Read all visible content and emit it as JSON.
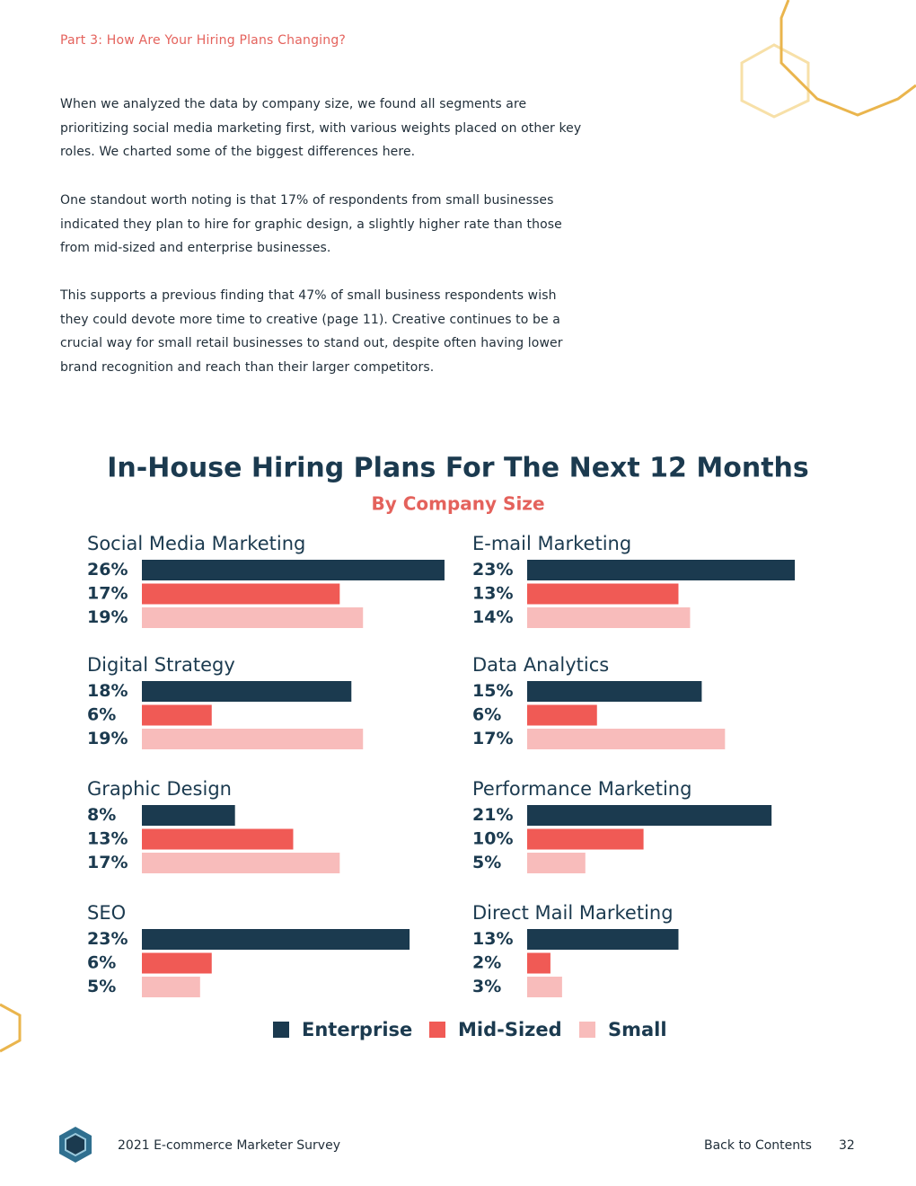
{
  "header": {
    "section": "Part 3: How Are Your Hiring Plans Changing?"
  },
  "paragraphs": [
    "When we analyzed the data by company size, we found all segments are prioritizing social media marketing first, with various weights placed on other key roles. We charted some of the biggest differences here.",
    "One standout worth noting is that 17% of respondents from small businesses indicated they plan to hire for graphic design, a slightly higher rate than those from mid-sized and enterprise businesses.",
    "This supports a previous finding that 47% of small business respondents wish they could devote more time to creative (page 11). Creative continues to be a crucial way for small retail businesses to stand out, despite often having lower brand recognition and reach than their larger competitors."
  ],
  "chart_data": {
    "type": "bar",
    "title": "In-House Hiring Plans For The Next 12 Months",
    "subtitle": "By Company Size",
    "categories": [
      "Social Media Marketing",
      "E-mail Marketing",
      "Digital Strategy",
      "Data Analytics",
      "Graphic Design",
      "Performance Marketing",
      "SEO",
      "Direct Mail Marketing"
    ],
    "series": [
      {
        "name": "Enterprise",
        "color": "#1b3a4f",
        "values": [
          26,
          23,
          18,
          15,
          8,
          21,
          23,
          13
        ],
        "value_labels": [
          "26%",
          "23%",
          "18%",
          "15%",
          "8%",
          "21%",
          "23%",
          "13%"
        ]
      },
      {
        "name": "Mid-Sized",
        "color": "#f05a55",
        "values": [
          17,
          13,
          6,
          6,
          13,
          10,
          6,
          2
        ],
        "value_labels": [
          "17%",
          "13%",
          "6%",
          "6%",
          "13%",
          "10%",
          "6%",
          "2%"
        ]
      },
      {
        "name": "Small",
        "color": "#f8bcbb",
        "values": [
          19,
          14,
          19,
          17,
          17,
          5,
          5,
          3
        ],
        "value_labels": [
          "19%",
          "14%",
          "19%",
          "17%",
          "17%",
          "5%",
          "5%",
          "3%"
        ]
      }
    ]
  },
  "footer": {
    "survey": "2021 E-commerce Marketer Survey",
    "link": "Back to Contents",
    "page": "32"
  }
}
